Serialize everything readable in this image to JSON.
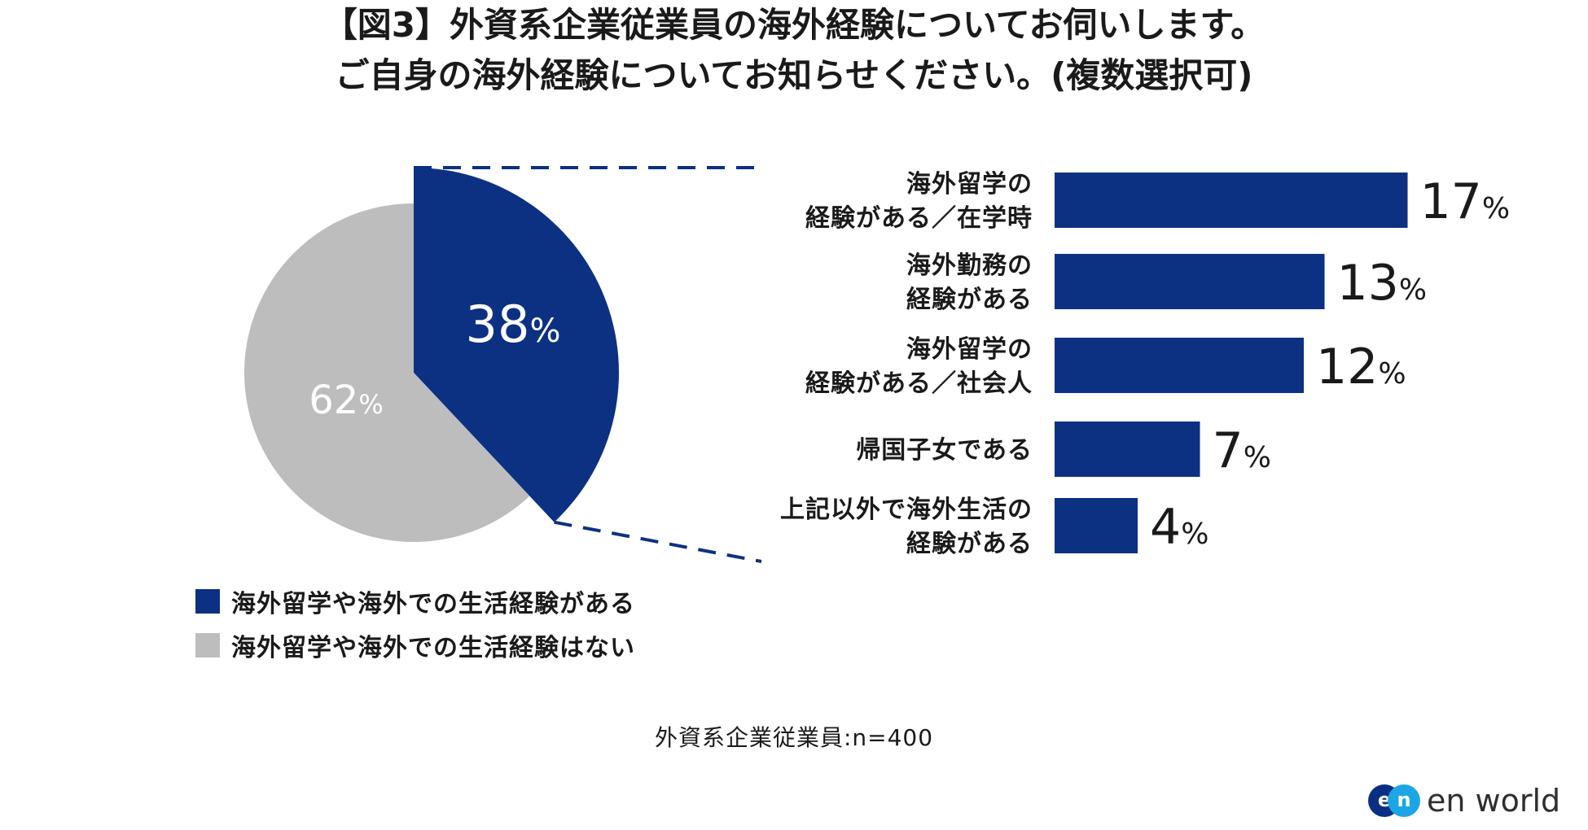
{
  "title": {
    "line1": "【図3】外資系企業従業員の海外経験についてお伺いします。",
    "line2": "ご自身の海外経験についてお知らせください。(複数選択可)"
  },
  "colors": {
    "navy": "#0c3183",
    "gray": "#bdbdbd",
    "white": "#ffffff",
    "text": "#1a1a1a"
  },
  "chart_data": [
    {
      "type": "pie",
      "slices": [
        {
          "label": "海外留学や海外での生活経験がある",
          "value": 38,
          "display": "38",
          "unit": "%",
          "color": "#0c3183"
        },
        {
          "label": "海外留学や海外での生活経験はない",
          "value": 62,
          "display": "62",
          "unit": "%",
          "color": "#bdbdbd"
        }
      ],
      "exploded_slice": 0
    },
    {
      "type": "bar",
      "orientation": "horizontal",
      "categories": [
        [
          "海外留学の",
          "経験がある／在学時"
        ],
        [
          "海外勤務の",
          "経験がある"
        ],
        [
          "海外留学の",
          "経験がある／社会人"
        ],
        [
          "帰国子女である"
        ],
        [
          "上記以外で海外生活の",
          "経験がある"
        ]
      ],
      "values": [
        17,
        13,
        12,
        7,
        4
      ],
      "unit": "%",
      "color": "#0c3183"
    }
  ],
  "legend": [
    {
      "label": "海外留学や海外での生活経験がある",
      "color": "#0c3183"
    },
    {
      "label": "海外留学や海外での生活経験はない",
      "color": "#bdbdbd"
    }
  ],
  "sample_note": "外資系企業従業員:n=400",
  "logo": {
    "mark1": "e",
    "mark2": "n",
    "text": "en world"
  }
}
